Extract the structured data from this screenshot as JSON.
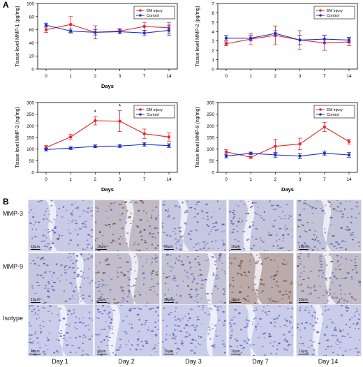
{
  "panel_letters": [
    "A",
    "B"
  ],
  "chart_data": [
    {
      "type": "line",
      "x": [
        "0",
        "1",
        "2",
        "3",
        "7",
        "14"
      ],
      "xlabel": "Days",
      "ylabel": "Tissue level MMP-1 (pg/mg)",
      "ylim": [
        0,
        100
      ],
      "yticks": [
        0,
        20,
        40,
        60,
        80,
        100
      ],
      "grid": false,
      "legend": "top-right",
      "series": [
        {
          "name": "EM injury",
          "color": "#e8262b",
          "values": [
            60,
            68,
            56,
            58,
            65,
            63
          ],
          "errors": [
            4,
            12,
            10,
            4,
            6,
            8
          ]
        },
        {
          "name": "Control",
          "color": "#1f2fc4",
          "values": [
            67,
            58,
            56,
            57,
            55,
            59
          ],
          "errors": [
            3,
            3,
            4,
            3,
            4,
            8
          ]
        }
      ],
      "annotations": []
    },
    {
      "type": "line",
      "x": [
        "0",
        "1",
        "2",
        "3",
        "7",
        "14"
      ],
      "xlabel": "",
      "ylabel": "Tissue level MMP-2 (pg/mg)",
      "ylim": [
        0,
        7
      ],
      "yticks": [
        0,
        1,
        2,
        3,
        4,
        5,
        6,
        7
      ],
      "grid": false,
      "legend": "top-right",
      "series": [
        {
          "name": "EM injury",
          "color": "#e8262b",
          "values": [
            2.7,
            3.2,
            3.6,
            3.1,
            2.8,
            2.9
          ],
          "errors": [
            0.2,
            0.6,
            1.0,
            1.0,
            0.8,
            0.4
          ]
        },
        {
          "name": "Control",
          "color": "#1f2fc4",
          "values": [
            3.3,
            3.3,
            3.8,
            3.1,
            3.2,
            3.1
          ],
          "errors": [
            0.3,
            0.3,
            0.3,
            0.5,
            0.4,
            0.3
          ]
        }
      ],
      "annotations": []
    },
    {
      "type": "line",
      "x": [
        "0",
        "1",
        "2",
        "3",
        "7",
        "14"
      ],
      "xlabel": "Days",
      "ylabel": "Tissue level MMP-3 (ng/mg)",
      "ylim": [
        0,
        300
      ],
      "yticks": [
        0,
        50,
        100,
        150,
        200,
        250,
        300
      ],
      "grid": false,
      "legend": "top-right",
      "series": [
        {
          "name": "EM injury",
          "color": "#e8262b",
          "values": [
            107,
            152,
            222,
            220,
            166,
            152
          ],
          "errors": [
            8,
            12,
            18,
            45,
            20,
            18
          ]
        },
        {
          "name": "Control",
          "color": "#1f2fc4",
          "values": [
            98,
            104,
            112,
            113,
            120,
            115
          ],
          "errors": [
            6,
            6,
            6,
            6,
            8,
            8
          ]
        }
      ],
      "annotations": [
        {
          "x": "2",
          "text": "*"
        },
        {
          "x": "3",
          "text": "*"
        }
      ]
    },
    {
      "type": "line",
      "x": [
        "0",
        "1",
        "2",
        "3",
        "7",
        "14"
      ],
      "xlabel": "Days",
      "ylabel": "Tissue level MMP-9 (ng/mg)",
      "ylim": [
        0,
        300
      ],
      "yticks": [
        0,
        50,
        100,
        150,
        200,
        250,
        300
      ],
      "grid": false,
      "legend": "top-right",
      "series": [
        {
          "name": "EM injury",
          "color": "#e8262b",
          "values": [
            88,
            65,
            112,
            122,
            195,
            132
          ],
          "errors": [
            10,
            5,
            30,
            25,
            20,
            10
          ]
        },
        {
          "name": "Control",
          "color": "#1f2fc4",
          "values": [
            70,
            82,
            75,
            70,
            82,
            75
          ],
          "errors": [
            8,
            5,
            10,
            12,
            10,
            10
          ]
        }
      ],
      "annotations": [
        {
          "x": "7",
          "text": "*"
        }
      ]
    }
  ],
  "micrographs": {
    "row_labels": [
      "MMP-3",
      "MMP-9",
      "Isotype"
    ],
    "col_labels": [
      "Day 1",
      "Day 2",
      "Day 3",
      "Day 7",
      "Day 14"
    ],
    "scale_label": "10μm",
    "colors": {
      "hematoxylin": "#5a63b8",
      "background": "#c9cdea",
      "dab": "#a0703a"
    },
    "dab_staining_level": [
      [
        0.05,
        0.45,
        0.1,
        0.15,
        0.2
      ],
      [
        0.1,
        0.35,
        0.25,
        0.8,
        0.4
      ],
      [
        0.0,
        0.0,
        0.0,
        0.0,
        0.0
      ]
    ]
  }
}
